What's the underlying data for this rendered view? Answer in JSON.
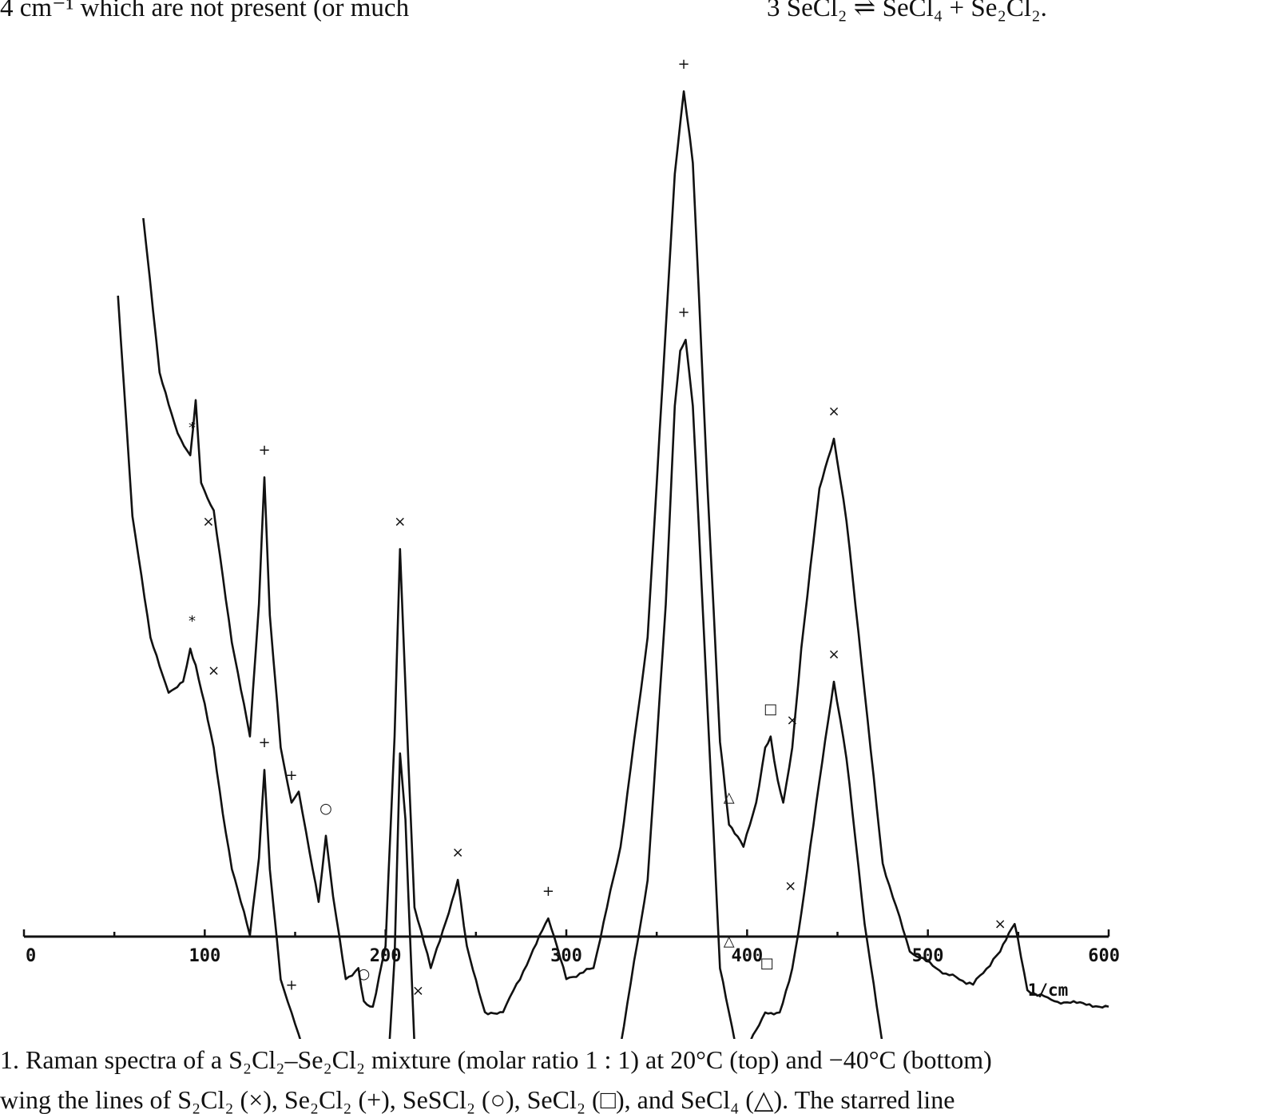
{
  "page": {
    "top_left_text": "4 cm⁻¹ which are not present (or much",
    "top_right_text": "3 SeCl₂ ⇌ SeCl₄ + Se₂Cl₂.",
    "caption_line1": "1. Raman spectra of a S₂Cl₂–Se₂Cl₂ mixture (molar ratio 1 : 1) at 20°C (top) and −40°C (bottom)",
    "caption_line2": "wing the lines of S₂Cl₂ (×), Se₂Cl₂ (+), SeSCl₂ (○), SeCl₂ (□), and SeCl₄ (△). The starred line"
  },
  "chart_data": {
    "type": "line",
    "xlabel": "1/cm",
    "x_ticks": [
      "0",
      "100",
      "200",
      "300",
      "400",
      "500",
      "600"
    ],
    "xlim": [
      0,
      600
    ],
    "grid": false,
    "series": [
      {
        "name": "20°C (top)",
        "x": [
          66,
          75,
          85,
          92,
          95,
          98,
          105,
          115,
          125,
          130,
          133,
          136,
          142,
          148,
          152,
          158,
          163,
          167,
          171,
          178,
          185,
          188,
          193,
          200,
          205,
          208,
          211,
          216,
          225,
          235,
          240,
          245,
          255,
          265,
          280,
          290,
          300,
          315,
          330,
          345,
          355,
          360,
          365,
          370,
          378,
          385,
          390,
          398,
          405,
          410,
          413,
          417,
          420,
          425,
          430,
          440,
          448,
          455,
          465,
          475,
          490,
          510,
          525,
          540,
          548,
          555,
          570,
          600
        ],
        "y": [
          100,
          72,
          61,
          57,
          67,
          52,
          47,
          23,
          6,
          30,
          53,
          28,
          4,
          -6,
          -4,
          -15,
          -24,
          -12,
          -23,
          -38,
          -36,
          -42,
          -43,
          -32,
          6,
          40,
          15,
          -25,
          -36,
          -26,
          -20,
          -32,
          -44,
          -44,
          -34,
          -27,
          -38,
          -36,
          -14,
          24,
          80,
          108,
          123,
          110,
          52,
          5,
          -10,
          -14,
          -6,
          4,
          6,
          -2,
          -6,
          4,
          22,
          51,
          60,
          45,
          14,
          -17,
          -33,
          -37,
          -39,
          -33,
          -28,
          -40,
          -42,
          -43
        ]
      },
      {
        "name": "−40°C (bottom)",
        "x": [
          52,
          60,
          70,
          80,
          88,
          92,
          95,
          100,
          105,
          110,
          115,
          125,
          130,
          133,
          136,
          142,
          148,
          152,
          158,
          163,
          167,
          171,
          178,
          185,
          188,
          193,
          200,
          205,
          208,
          211,
          216,
          225,
          235,
          240,
          245,
          255,
          265,
          280,
          290,
          300,
          315,
          330,
          345,
          355,
          360,
          363,
          366,
          370,
          378,
          385,
          390,
          395,
          400,
          410,
          418,
          425,
          430,
          440,
          448,
          455,
          465,
          475,
          490,
          510,
          525,
          540,
          548,
          555,
          570,
          585,
          600
        ],
        "y": [
          100,
          60,
          38,
          28,
          30,
          36,
          33,
          26,
          18,
          6,
          -4,
          -16,
          -2,
          14,
          -4,
          -24,
          -30,
          -34,
          -40,
          -46,
          -44,
          -48,
          -52,
          -53,
          -56,
          -56,
          -48,
          -20,
          17,
          5,
          -36,
          -52,
          -46,
          -42,
          -50,
          -56,
          -54,
          -46,
          -43,
          -52,
          -50,
          -36,
          -6,
          44,
          80,
          90,
          92,
          80,
          26,
          -22,
          -30,
          -38,
          -36,
          -30,
          -30,
          -22,
          -12,
          12,
          30,
          16,
          -14,
          -36,
          -50,
          -54,
          -55,
          -46,
          -43,
          -54,
          -56,
          -52,
          -52
        ]
      }
    ],
    "annotations": [
      {
        "series": "20°C (top)",
        "x": 93,
        "y": 62,
        "label": "*"
      },
      {
        "series": "20°C (top)",
        "x": 102,
        "y": 45,
        "label": "×"
      },
      {
        "series": "20°C (top)",
        "x": 133,
        "y": 58,
        "label": "+"
      },
      {
        "series": "20°C (top)",
        "x": 148,
        "y": -1,
        "label": "+"
      },
      {
        "series": "20°C (top)",
        "x": 167,
        "y": -7,
        "label": "○"
      },
      {
        "series": "20°C (top)",
        "x": 188,
        "y": -37,
        "label": "○"
      },
      {
        "series": "20°C (top)",
        "x": 208,
        "y": 45,
        "label": "×"
      },
      {
        "series": "20°C (top)",
        "x": 240,
        "y": -15,
        "label": "×"
      },
      {
        "series": "20°C (top)",
        "x": 290,
        "y": -22,
        "label": "+"
      },
      {
        "series": "20°C (top)",
        "x": 365,
        "y": 128,
        "label": "+"
      },
      {
        "series": "20°C (top)",
        "x": 390,
        "y": -5,
        "label": "△"
      },
      {
        "series": "20°C (top)",
        "x": 413,
        "y": 11,
        "label": "□"
      },
      {
        "series": "20°C (top)",
        "x": 425,
        "y": 9,
        "label": "×"
      },
      {
        "series": "20°C (top)",
        "x": 448,
        "y": 65,
        "label": "×"
      },
      {
        "series": "20°C (top)",
        "x": 540,
        "y": -28,
        "label": "×"
      },
      {
        "series": "−40°C (bottom)",
        "x": 93,
        "y": 41,
        "label": "*"
      },
      {
        "series": "−40°C (bottom)",
        "x": 105,
        "y": 32,
        "label": "×"
      },
      {
        "series": "−40°C (bottom)",
        "x": 133,
        "y": 19,
        "label": "+"
      },
      {
        "series": "−40°C (bottom)",
        "x": 148,
        "y": -25,
        "label": "+"
      },
      {
        "series": "−40°C (bottom)",
        "x": 167,
        "y": -39,
        "label": "○"
      },
      {
        "series": "−40°C (bottom)",
        "x": 188,
        "y": -51,
        "label": "○"
      },
      {
        "series": "−40°C (bottom)",
        "x": 218,
        "y": -26,
        "label": "×"
      },
      {
        "series": "−40°C (bottom)",
        "x": 240,
        "y": -37,
        "label": "×"
      },
      {
        "series": "−40°C (bottom)",
        "x": 290,
        "y": -38,
        "label": "+"
      },
      {
        "series": "−40°C (bottom)",
        "x": 365,
        "y": 97,
        "label": "+"
      },
      {
        "series": "−40°C (bottom)",
        "x": 390,
        "y": -17,
        "label": "△"
      },
      {
        "series": "−40°C (bottom)",
        "x": 411,
        "y": -21,
        "label": "□"
      },
      {
        "series": "−40°C (bottom)",
        "x": 424,
        "y": -7,
        "label": "×"
      },
      {
        "series": "−40°C (bottom)",
        "x": 448,
        "y": 35,
        "label": "×"
      },
      {
        "series": "−40°C (bottom)",
        "x": 540,
        "y": -41,
        "label": "×"
      }
    ]
  }
}
